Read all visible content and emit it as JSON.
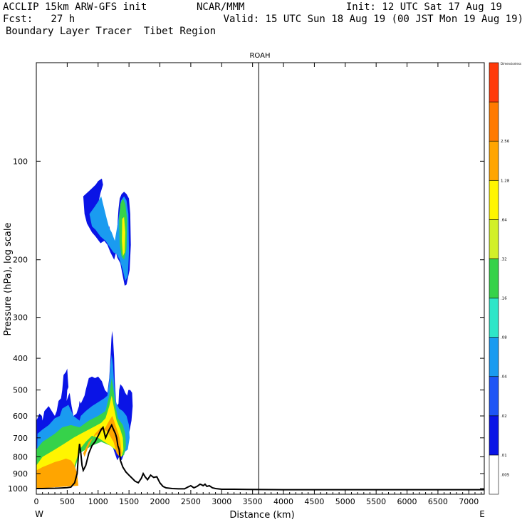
{
  "header": {
    "line1_left": "ACCLIP 15km ARW-GFS init",
    "line1_mid": "NCAR/MMM",
    "line1_right": "Init: 12 UTC Sat 17 Aug 19",
    "line2_left": "Fcst:   27 h",
    "line2_right": "Valid: 15 UTC Sun 18 Aug 19 (00 JST Mon 19 Aug 19)",
    "line3_left": "Boundary Layer Tracer  Tibet Region"
  },
  "chart_data": {
    "type": "heatmap",
    "title": "ROAH",
    "xlabel": "Distance (km)",
    "ylabel": "Pressure (hPa), log scale",
    "x_left_label": "W",
    "x_right_label": "E",
    "xlim": [
      0,
      7250
    ],
    "ylim_hpa": [
      1000,
      50
    ],
    "y_scale": "log",
    "x_ticks": [
      0,
      500,
      1000,
      1500,
      2000,
      2500,
      3000,
      3500,
      4000,
      4500,
      5000,
      5500,
      6000,
      6500,
      7000
    ],
    "x_tick_labels": [
      "0",
      "500",
      "1000",
      "1500",
      "2000",
      "2500",
      "3000",
      "3500",
      "4000",
      "4500",
      "5000",
      "5500",
      "6000",
      "6500",
      "7000"
    ],
    "y_ticks": [
      100,
      200,
      300,
      400,
      500,
      600,
      700,
      800,
      900,
      1000
    ],
    "y_tick_labels": [
      "100",
      "200",
      "300",
      "400",
      "500",
      "600",
      "700",
      "800",
      "900",
      "1000"
    ],
    "vertical_line_x": 3600,
    "colorbar": {
      "levels": [
        ".005",
        ".01",
        ".02",
        ".04",
        ".08",
        ".16",
        ".32",
        ".64",
        "1.28",
        "2.56",
        "Dimensionless"
      ],
      "colors": [
        "#ffffff",
        "#0a14e6",
        "#1e55f5",
        "#1a9bf0",
        "#2ee6c8",
        "#36d24a",
        "#d2f028",
        "#fff500",
        "#ffa500",
        "#ff7a00",
        "#ff3a0a"
      ]
    },
    "terrain": {
      "distance_km": [
        0,
        100,
        200,
        300,
        400,
        500,
        560,
        620,
        660,
        680,
        700,
        720,
        740,
        760,
        800,
        850,
        900,
        950,
        1000,
        1050,
        1080,
        1120,
        1150,
        1180,
        1220,
        1250,
        1280,
        1300,
        1320,
        1340,
        1360,
        1400,
        1450,
        1500,
        1550,
        1600,
        1650,
        1700,
        1730,
        1760,
        1800,
        1850,
        1900,
        1950,
        2000,
        2050,
        2100,
        2200,
        2300,
        2400,
        2450,
        2500,
        2550,
        2600,
        2650,
        2680,
        2700,
        2730,
        2760,
        2800,
        2850,
        2900,
        3000,
        3200,
        3400,
        3600,
        4000,
        5000,
        6000,
        7000,
        7250
      ],
      "pressure_hpa": [
        1000,
        1000,
        999,
        998,
        996,
        994,
        990,
        960,
        900,
        800,
        730,
        780,
        850,
        880,
        850,
        780,
        740,
        720,
        690,
        660,
        650,
        700,
        680,
        660,
        640,
        660,
        680,
        700,
        740,
        760,
        820,
        860,
        890,
        910,
        930,
        950,
        960,
        930,
        900,
        920,
        940,
        910,
        925,
        920,
        960,
        985,
        995,
        1000,
        1002,
        1002,
        990,
        980,
        995,
        985,
        970,
        975,
        980,
        970,
        985,
        980,
        995,
        1000,
        1005,
        1005,
        1006,
        1007,
        1008,
        1008,
        1008,
        1008,
        1008
      ]
    },
    "tracer_contours": [
      {
        "level": ".01",
        "regions": [
          {
            "distance_km": [
              440,
              480,
              500,
              510,
              520,
              500,
              490,
              520,
              540,
              570,
              600,
              650,
              690,
              700,
              720,
              780,
              800,
              850,
              900,
              950,
              1000,
              1060,
              1110,
              1150,
              1180,
              1200,
              1215,
              1225,
              1240,
              1260,
              1270,
              1290,
              1300,
              1330,
              1340,
              1360,
              1400,
              1440,
              1470,
              1490,
              1520,
              1550,
              1560,
              1540,
              1500,
              1450,
              1400,
              1380,
              1340,
              1310,
              1280,
              1230,
              1200,
              1180,
              1160,
              1130,
              1100,
              1000,
              800,
              700,
              660,
              600,
              500,
              0,
              0,
              20,
              50,
              90,
              100,
              130,
              200,
              250,
              300,
              330,
              360,
              400,
              420,
              440
            ],
            "pressure_hpa": [
              450,
              440,
              430,
              460,
              490,
              500,
              540,
              520,
              510,
              560,
              600,
              590,
              560,
              540,
              550,
              520,
              500,
              460,
              455,
              460,
              455,
              470,
              500,
              510,
              460,
              400,
              350,
              330,
              345,
              400,
              470,
              540,
              560,
              550,
              500,
              480,
              490,
              510,
              520,
              500,
              500,
              510,
              560,
              620,
              680,
              760,
              800,
              820,
              800,
              820,
              790,
              740,
              720,
              650,
              660,
              640,
              640,
              655,
              690,
              720,
              760,
              900,
              960,
              990,
              620,
              610,
              590,
              600,
              620,
              580,
              560,
              580,
              600,
              580,
              540,
              530,
              500,
              450
            ]
          },
          {
            "distance_km": [
              760,
              820,
              880,
              960,
              1000,
              1060,
              1080,
              1040,
              1000,
              980,
              1020,
              1100,
              1180,
              1200,
              1260,
              1300,
              1330,
              1350,
              1380,
              1420,
              1460,
              1500,
              1520,
              1530,
              1510,
              1460,
              1430,
              1400,
              1360,
              1310,
              1290,
              1260,
              1200,
              1150,
              1100,
              1040,
              960,
              900,
              820,
              780,
              760
            ],
            "pressure_hpa": [
              128,
              125,
              122,
              118,
              115,
              113,
              118,
              125,
              135,
              150,
              160,
              165,
              158,
              165,
              180,
              170,
              140,
              130,
              126,
              124,
              126,
              130,
              145,
              180,
              215,
              238,
              240,
              225,
              205,
              197,
              190,
              200,
              190,
              180,
              175,
              178,
              170,
              165,
              155,
              145,
              128
            ]
          }
        ]
      },
      {
        "level": ".04",
        "regions": [
          {
            "distance_km": [
              20,
              100,
              200,
              300,
              380,
              420,
              520,
              600,
              700,
              720,
              800,
              900,
              1000,
              1100,
              1150,
              1180,
              1200,
              1220,
              1240,
              1260,
              1290,
              1340,
              1400,
              1460,
              1500,
              1510,
              1480,
              1400,
              1340,
              1300,
              1200,
              1050,
              900,
              800,
              700,
              640,
              600,
              500,
              0,
              20
            ],
            "pressure_hpa": [
              680,
              660,
              640,
              610,
              600,
              570,
              555,
              600,
              620,
              600,
              580,
              560,
              545,
              530,
              520,
              470,
              420,
              390,
              420,
              480,
              545,
              570,
              580,
              600,
              640,
              700,
              760,
              780,
              760,
              700,
              670,
              660,
              690,
              710,
              760,
              850,
              920,
              965,
              990,
              680
            ]
          },
          {
            "distance_km": [
              860,
              940,
              1010,
              1050,
              1080,
              1140,
              1180,
              1220,
              1270,
              1330,
              1370,
              1420,
              1460,
              1490,
              1500,
              1480,
              1440,
              1400,
              1350,
              1300,
              1250,
              1180,
              1120,
              1040,
              960,
              900,
              860
            ],
            "pressure_hpa": [
              145,
              138,
              132,
              128,
              135,
              150,
              160,
              165,
              175,
              150,
              132,
              128,
              132,
              145,
              190,
              225,
              232,
              215,
              200,
              192,
              190,
              182,
              175,
              170,
              162,
              158,
              145
            ]
          }
        ]
      },
      {
        "level": ".16",
        "regions": [
          {
            "distance_km": [
              0,
              100,
              200,
              300,
              420,
              560,
              700,
              850,
              1000,
              1120,
              1180,
              1220,
              1250,
              1280,
              1320,
              1400,
              1440,
              1450,
              1420,
              1350,
              1300,
              1200,
              1050,
              900,
              700,
              600,
              500,
              0
            ],
            "pressure_hpa": [
              760,
              720,
              700,
              680,
              650,
              640,
              650,
              620,
              600,
              580,
              520,
              460,
              500,
              560,
              610,
              640,
              680,
              740,
              790,
              800,
              770,
              740,
              720,
              740,
              780,
              900,
              960,
              990
            ]
          },
          {
            "distance_km": [
              1360,
              1400,
              1440,
              1470,
              1460,
              1420,
              1380,
              1350,
              1340,
              1360
            ],
            "pressure_hpa": [
              135,
              130,
              135,
              150,
              185,
              200,
              195,
              180,
              150,
              135
            ]
          }
        ]
      },
      {
        "level": ".64",
        "regions": [
          {
            "distance_km": [
              0,
              100,
              200,
              300,
              400,
              500,
              600,
              720,
              850,
              950,
              1050,
              1120,
              1180,
              1220,
              1260,
              1300,
              1360,
              1400,
              1410,
              1380,
              1330,
              1280,
              1200,
              1100,
              1000,
              900,
              800,
              700,
              620,
              560,
              500,
              0
            ],
            "pressure_hpa": [
              850,
              800,
              780,
              760,
              740,
              720,
              700,
              680,
              660,
              645,
              630,
              610,
              560,
              520,
              570,
              620,
              660,
              700,
              760,
              800,
              790,
              760,
              740,
              720,
              700,
              690,
              720,
              760,
              850,
              940,
              970,
              995
            ]
          },
          {
            "distance_km": [
              1390,
              1420,
              1440,
              1430,
              1400,
              1385,
              1390
            ],
            "pressure_hpa": [
              150,
              148,
              165,
              190,
              195,
              175,
              150
            ]
          }
        ]
      },
      {
        "level": "1.28",
        "regions": [
          {
            "distance_km": [
              0,
              100,
              200,
              300,
              400,
              480,
              560,
              620,
              660,
              680,
              0
            ],
            "pressure_hpa": [
              880,
              860,
              845,
              830,
              820,
              810,
              820,
              850,
              900,
              980,
              1000
            ]
          },
          {
            "distance_km": [
              760,
              850,
              950,
              1050,
              1120,
              1180,
              1230,
              1280,
              1330,
              1360,
              1380,
              1350,
              1300,
              1250,
              1150,
              1050,
              950,
              850,
              780,
              760
            ],
            "pressure_hpa": [
              780,
              720,
              690,
              670,
              650,
              620,
              600,
              640,
              680,
              720,
              780,
              800,
              780,
              720,
              670,
              650,
              680,
              740,
              800,
              780
            ]
          }
        ]
      }
    ]
  }
}
